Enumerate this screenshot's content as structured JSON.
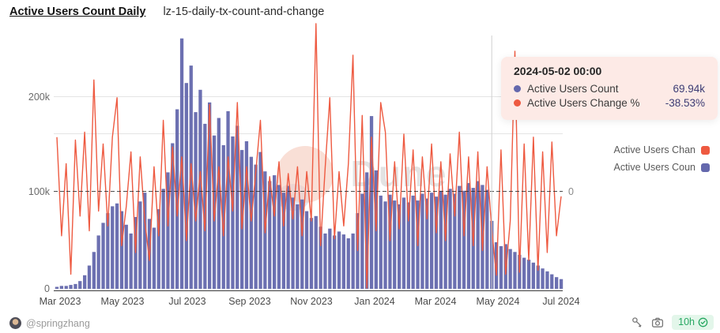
{
  "header": {
    "title": "Active Users Count Daily",
    "subtitle": "lz-15-daily-tx-count-and-change"
  },
  "watermark": {
    "text": "Dune"
  },
  "tooltip": {
    "date": "2024-05-02 00:00",
    "rows": [
      {
        "label": "Active Users Count",
        "value": "69.94k"
      },
      {
        "label": "Active Users Change %",
        "value": "-38.53%"
      }
    ]
  },
  "legend": {
    "items": [
      {
        "label": "Active Users Chan"
      },
      {
        "label": "Active Users Coun"
      }
    ]
  },
  "footer": {
    "author": "@springzhang",
    "icons": [
      "fork-icon",
      "camera-icon"
    ],
    "refresh_badge": "10h",
    "refresh_check_icon": "check-circle-icon"
  },
  "colors": {
    "bar": "#6468ad",
    "line": "#ee5a41",
    "tooltip_bg": "#fdeae6",
    "tooltip_value": "#3c3c74",
    "legend_text": "#5a5a5a",
    "badge_bg": "#e3f6ea",
    "badge_text": "#27a862",
    "watermark_circle": "#f5cabb"
  },
  "chart_data": {
    "type": "bar",
    "title": "Active Users Count Daily",
    "subtitle": "lz-15-daily-tx-count-and-change",
    "x_axis": {
      "ticks": [
        "Mar 2023",
        "May 2023",
        "Jul 2023",
        "Sep 2023",
        "Nov 2023",
        "Jan 2024",
        "Mar 2024",
        "May 2024",
        "Jul 2024"
      ],
      "range": [
        "2023-03-01",
        "2024-07-10"
      ]
    },
    "y_axis_left": {
      "label": "Active Users Count",
      "ticks": [
        "0",
        "100k",
        "200k"
      ],
      "range_users": [
        0,
        266000
      ]
    },
    "y_axis_right": {
      "label": "Active Users Change %",
      "ticks": [
        "0"
      ],
      "zero_aligned_with_left_value": "100k"
    },
    "grid": true,
    "legend_position": "right",
    "series": [
      {
        "name": "Active Users Count",
        "type": "bar",
        "axis": "left",
        "color": "#6468ad",
        "unit": "thousands_of_users",
        "values": [
          2,
          3,
          3,
          4,
          5,
          8,
          14,
          24,
          38,
          55,
          68,
          78,
          85,
          88,
          80,
          66,
          57,
          74,
          90,
          99,
          72,
          63,
          82,
          103,
          120,
          150,
          185,
          258,
          212,
          230,
          182,
          205,
          170,
          192,
          158,
          176,
          148,
          183,
          157,
          168,
          143,
          152,
          136,
          128,
          141,
          121,
          111,
          117,
          107,
          99,
          106,
          94,
          87,
          92,
          80,
          73,
          75,
          64,
          57,
          62,
          55,
          59,
          56,
          52,
          57,
          78,
          98,
          120,
          178,
          122,
          96,
          90,
          97,
          91,
          87,
          94,
          89,
          96,
          91,
          98,
          93,
          99,
          95,
          101,
          97,
          103,
          98,
          106,
          101,
          109,
          104,
          111,
          107,
          102,
          70,
          48,
          44,
          46,
          41,
          38,
          35,
          32,
          30,
          27,
          24,
          21,
          18,
          15,
          12,
          10
        ]
      },
      {
        "name": "Active Users Change %",
        "type": "line",
        "axis": "right",
        "color": "#ee5a41",
        "unit": "percent",
        "values": [
          55,
          -45,
          28,
          -84,
          52,
          -25,
          60,
          -40,
          113,
          -20,
          48,
          -35,
          55,
          95,
          -55,
          -15,
          40,
          -62,
          35,
          -30,
          -70,
          25,
          -45,
          72,
          -35,
          45,
          -25,
          35,
          -50,
          28,
          -30,
          20,
          -40,
          88,
          -30,
          25,
          -45,
          35,
          -20,
          90,
          -38,
          25,
          -30,
          20,
          72,
          -42,
          15,
          -25,
          30,
          -35,
          18,
          -28,
          25,
          -45,
          20,
          -30,
          170,
          -55,
          25,
          95,
          -48,
          20,
          -35,
          28,
          138,
          -60,
          77,
          -98,
          55,
          -40,
          90,
          60,
          -50,
          30,
          -38,
          58,
          -30,
          42,
          -55,
          35,
          -28,
          48,
          -42,
          30,
          -50,
          38,
          -25,
          60,
          -45,
          35,
          -55,
          40,
          -60,
          25,
          -38.53,
          -85,
          42,
          -84,
          -30,
          142,
          -82,
          48,
          -70,
          55,
          -80,
          40,
          -62,
          50,
          -45,
          -5
        ]
      }
    ],
    "highlight": {
      "date": "2024-05-02 00:00",
      "active_users_count": "69.94k",
      "active_users_change_pct": "-38.53%",
      "crosshair_index": 94
    }
  }
}
